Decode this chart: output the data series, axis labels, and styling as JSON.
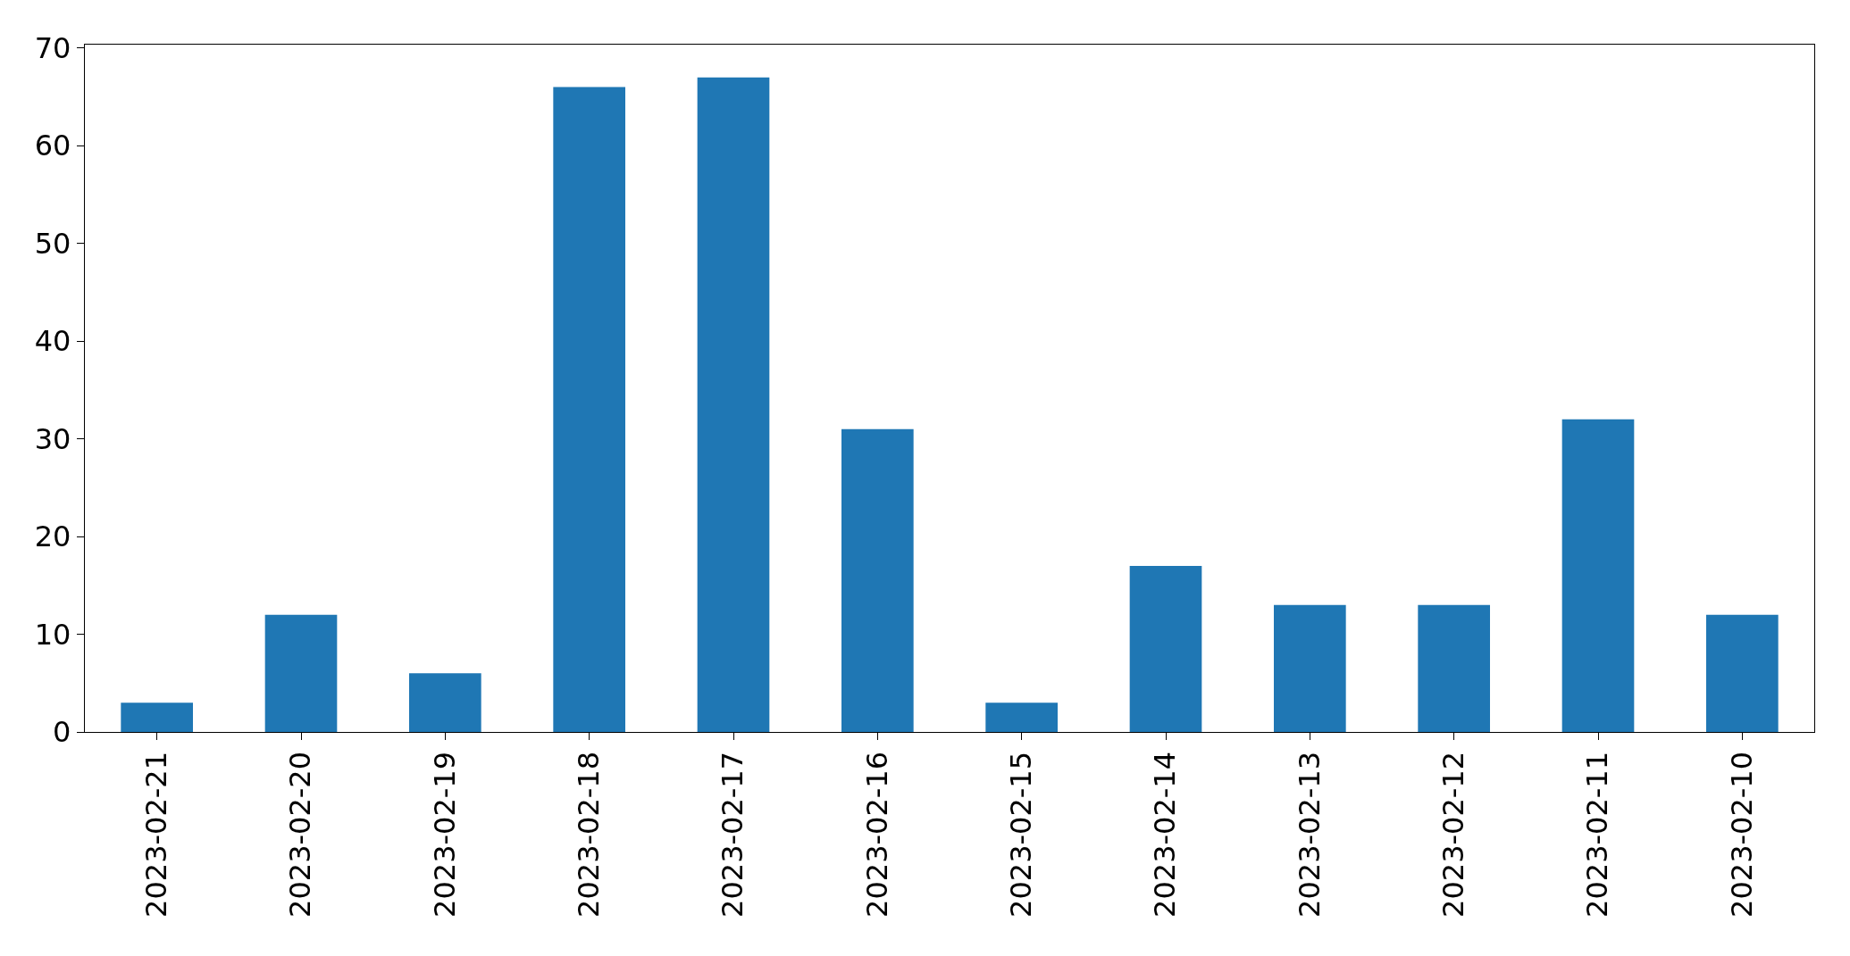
{
  "chart_data": {
    "type": "bar",
    "categories": [
      "2023-02-21",
      "2023-02-20",
      "2023-02-19",
      "2023-02-18",
      "2023-02-17",
      "2023-02-16",
      "2023-02-15",
      "2023-02-14",
      "2023-02-13",
      "2023-02-12",
      "2023-02-11",
      "2023-02-10"
    ],
    "values": [
      3,
      12,
      6,
      66,
      67,
      31,
      3,
      17,
      13,
      13,
      32,
      12
    ],
    "color": "#1f77b4",
    "ylim": [
      0,
      70.35
    ],
    "yticks": [
      0,
      10,
      20,
      30,
      40,
      50,
      60,
      70
    ],
    "grid": false
  }
}
